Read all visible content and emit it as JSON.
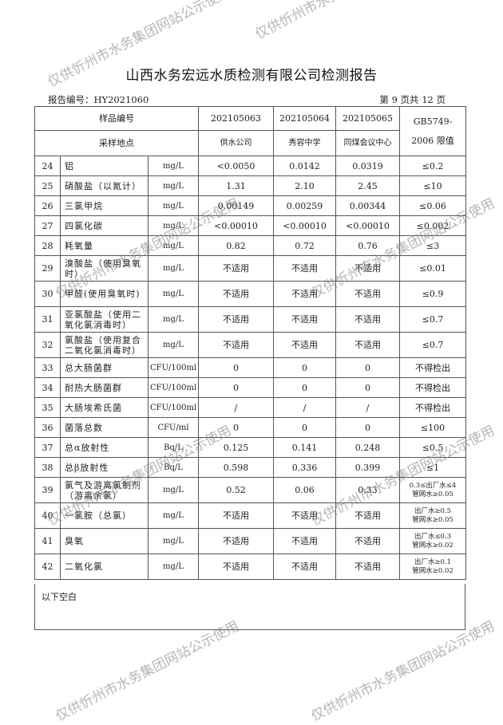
{
  "header": {
    "title": "山西水务宏远水质检测有限公司检测报告",
    "report_no": "报告编号：HY2021060",
    "page": "第 9 页共 12 页"
  },
  "table": {
    "sample_id_label": "样品编号",
    "location_label": "采样地点",
    "sample_ids": [
      "202105063",
      "202105064",
      "202105065"
    ],
    "locations": [
      "供水公司",
      "秀容中学",
      "同煤会议中心"
    ],
    "limit_header_1": "GB5749-",
    "limit_header_2": "2006 限值",
    "rows": [
      {
        "no": "24",
        "name": "铝",
        "unit": "mg/L",
        "v": [
          "<0.0050",
          "0.0142",
          "0.0319"
        ],
        "limit": "≤0.2"
      },
      {
        "no": "25",
        "name": "硝酸盐（以氮计）",
        "unit": "mg/L",
        "v": [
          "1.31",
          "2.10",
          "2.45"
        ],
        "limit": "≤10"
      },
      {
        "no": "26",
        "name": "三氯甲烷",
        "unit": "mg/L",
        "v": [
          "0.00149",
          "0.00259",
          "0.00344"
        ],
        "limit": "≤0.06"
      },
      {
        "no": "27",
        "name": "四氯化碳",
        "unit": "mg/L",
        "v": [
          "<0.00010",
          "<0.00010",
          "<0.00010"
        ],
        "limit": "≤0.002"
      },
      {
        "no": "28",
        "name": "耗氧量",
        "unit": "mg/L",
        "v": [
          "0.82",
          "0.72",
          "0.76"
        ],
        "limit": "≤3"
      },
      {
        "no": "29",
        "name": "溴酸盐（使用臭氧时）",
        "unit": "mg/L",
        "v": [
          "不适用",
          "不适用",
          "不适用"
        ],
        "limit": "≤0.01"
      },
      {
        "no": "30",
        "name": "甲醛(使用臭氧时)",
        "unit": "mg/L",
        "v": [
          "不适用",
          "不适用",
          "不适用"
        ],
        "limit": "≤0.9"
      },
      {
        "no": "31",
        "name": "亚氯酸盐（使用二氧化氯消毒时）",
        "unit": "mg/L",
        "v": [
          "不适用",
          "不适用",
          "不适用"
        ],
        "limit": "≤0.7"
      },
      {
        "no": "32",
        "name": "氯酸盐（使用复合二氧化氯消毒时）",
        "unit": "mg/L",
        "v": [
          "不适用",
          "不适用",
          "不适用"
        ],
        "limit": "≤0.7"
      },
      {
        "no": "33",
        "name": "总大肠菌群",
        "unit": "CFU/100ml",
        "v": [
          "0",
          "0",
          "0"
        ],
        "limit": "不得检出"
      },
      {
        "no": "34",
        "name": "耐热大肠菌群",
        "unit": "CFU/100ml",
        "v": [
          "0",
          "0",
          "0"
        ],
        "limit": "不得检出"
      },
      {
        "no": "35",
        "name": "大肠埃希氏菌",
        "unit": "CFU/100ml",
        "v": [
          "/",
          "/",
          "/"
        ],
        "limit": "不得检出"
      },
      {
        "no": "36",
        "name": "菌落总数",
        "unit": "CFU/ml",
        "v": [
          "0",
          "0",
          "0"
        ],
        "limit": "≤100"
      },
      {
        "no": "37",
        "name": "总α放射性",
        "unit": "Bq/L",
        "v": [
          "0.125",
          "0.141",
          "0.248"
        ],
        "limit": "≤0.5"
      },
      {
        "no": "38",
        "name": "总β放射性",
        "unit": "Bq/L",
        "v": [
          "0.598",
          "0.336",
          "0.399"
        ],
        "limit": "≤1"
      },
      {
        "no": "39",
        "name": "氯气及游离氯制剂（游离余氯）",
        "unit": "mg/L",
        "v": [
          "0.52",
          "0.06",
          "0.33"
        ],
        "limit": "0.3≤出厂水≤4 管网水≥0.05"
      },
      {
        "no": "40",
        "name": "一氯胺（总氯）",
        "unit": "mg/L",
        "v": [
          "不适用",
          "不适用",
          "不适用"
        ],
        "limit": "出厂水≥0.5 管网水≥0.05"
      },
      {
        "no": "41",
        "name": "臭氧",
        "unit": "mg/L",
        "v": [
          "不适用",
          "不适用",
          "不适用"
        ],
        "limit": "出厂水≤0.3 管网水≥0.02"
      },
      {
        "no": "42",
        "name": "二氧化氯",
        "unit": "mg/L",
        "v": [
          "不适用",
          "不适用",
          "不适用"
        ],
        "limit": "出厂水≥0.1 管网水≥0.02"
      }
    ]
  },
  "footer": {
    "note": "以下空白"
  },
  "watermark": "仅供忻州市水务集团网站公示使用"
}
